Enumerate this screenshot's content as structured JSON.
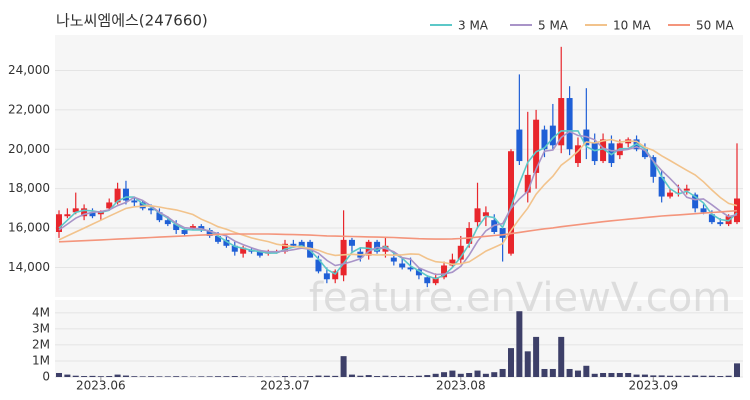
{
  "chart_data": {
    "type": "candlestick",
    "title": "나노씨엠에스(247660)",
    "watermark": "feature.enViewV.com",
    "categories": [
      null,
      null,
      null,
      null,
      null,
      "2023.06",
      null,
      null,
      null,
      null,
      null,
      null,
      null,
      null,
      null,
      null,
      null,
      null,
      null,
      null,
      null,
      null,
      null,
      null,
      null,
      null,
      null,
      "2023.07",
      null,
      null,
      null,
      null,
      null,
      null,
      null,
      null,
      null,
      null,
      null,
      null,
      null,
      null,
      null,
      null,
      null,
      null,
      null,
      null,
      "2023.08",
      null,
      null,
      null,
      null,
      null,
      null,
      null,
      null,
      null,
      null,
      null,
      null,
      null,
      null,
      null,
      null,
      null,
      null,
      null,
      null,
      null,
      null,
      "2023.09",
      null,
      null,
      null,
      null,
      null,
      null,
      null,
      null,
      null,
      null
    ],
    "open": [
      15800,
      16600,
      16800,
      16600,
      16800,
      16700,
      17000,
      17300,
      18000,
      17400,
      17300,
      17000,
      16800,
      16400,
      16200,
      15900,
      16000,
      16100,
      15900,
      15600,
      15400,
      15100,
      14700,
      14900,
      14800,
      14700,
      14800,
      14800,
      15200,
      15300,
      15300,
      14400,
      13700,
      13400,
      13600,
      15400,
      14800,
      14600,
      15300,
      14800,
      14500,
      14200,
      14000,
      13900,
      13500,
      13200,
      13500,
      14100,
      14400,
      15200,
      16300,
      16600,
      16400,
      16000,
      14700,
      21000,
      17800,
      18800,
      21000,
      21200,
      20200,
      22600,
      19300,
      21000,
      20300,
      19400,
      20300,
      19700,
      20300,
      20500,
      20000,
      19600,
      18600,
      17600,
      17800,
      17900,
      17700,
      17000,
      16700,
      16300,
      16200,
      16300
    ],
    "high": [
      16900,
      17000,
      17800,
      17200,
      17000,
      16900,
      17500,
      18300,
      18400,
      17600,
      17400,
      17200,
      17000,
      16600,
      16400,
      16000,
      16200,
      16200,
      16000,
      15800,
      15600,
      15300,
      15100,
      15000,
      14900,
      14900,
      14900,
      15400,
      15400,
      15400,
      15400,
      14600,
      14000,
      13900,
      16900,
      15500,
      15000,
      15400,
      15400,
      15500,
      14800,
      14500,
      14500,
      14000,
      13600,
      13700,
      14300,
      14700,
      15600,
      16300,
      18300,
      17100,
      16700,
      16000,
      20000,
      23800,
      21900,
      22000,
      21200,
      22300,
      25200,
      23200,
      20600,
      23100,
      20800,
      20800,
      20700,
      20500,
      20600,
      20700,
      20300,
      19700,
      18900,
      18000,
      18200,
      18200,
      17800,
      17200,
      16900,
      16500,
      16700,
      20300
    ],
    "low": [
      15500,
      16500,
      16700,
      16400,
      16500,
      16400,
      16900,
      17200,
      17200,
      17100,
      16900,
      16700,
      16300,
      16100,
      15700,
      15600,
      15900,
      15800,
      15500,
      15200,
      15000,
      14600,
      14500,
      14700,
      14500,
      14600,
      14700,
      14700,
      15000,
      15000,
      14500,
      13700,
      13200,
      13200,
      13300,
      14800,
      14300,
      14400,
      14700,
      14500,
      14100,
      13900,
      13800,
      13400,
      13000,
      13100,
      13400,
      14000,
      14200,
      15000,
      16000,
      16100,
      15700,
      14300,
      14600,
      19200,
      17300,
      18000,
      19600,
      20000,
      19800,
      19700,
      19100,
      19500,
      19200,
      19300,
      19100,
      19500,
      20100,
      19900,
      19500,
      18300,
      17300,
      17500,
      17600,
      17700,
      16800,
      16700,
      16200,
      16100,
      16100,
      16200
    ],
    "close": [
      16700,
      16700,
      17000,
      17000,
      16600,
      16800,
      17300,
      18000,
      17400,
      17300,
      17000,
      16900,
      16400,
      16200,
      15900,
      15700,
      16100,
      15900,
      15600,
      15300,
      15100,
      14800,
      15000,
      14800,
      14600,
      14800,
      14800,
      15200,
      15100,
      15000,
      14500,
      13800,
      13400,
      13800,
      15400,
      15100,
      14500,
      15300,
      14800,
      15100,
      14300,
      14000,
      13900,
      13600,
      13200,
      13500,
      14100,
      14400,
      15100,
      16000,
      17000,
      16800,
      15800,
      15500,
      19900,
      19400,
      18700,
      21500,
      20000,
      20200,
      22600,
      20000,
      20200,
      20200,
      19400,
      20500,
      19300,
      20300,
      20500,
      20000,
      19600,
      18600,
      17600,
      17800,
      17800,
      18000,
      17000,
      16800,
      16300,
      16200,
      16600,
      17500
    ],
    "volume": [
      250000,
      150000,
      80000,
      60000,
      70000,
      50000,
      60000,
      150000,
      90000,
      50000,
      40000,
      50000,
      40000,
      40000,
      50000,
      40000,
      30000,
      40000,
      40000,
      50000,
      50000,
      60000,
      40000,
      30000,
      40000,
      30000,
      30000,
      60000,
      50000,
      40000,
      60000,
      90000,
      80000,
      70000,
      1300000,
      150000,
      80000,
      120000,
      60000,
      80000,
      60000,
      70000,
      60000,
      80000,
      120000,
      200000,
      300000,
      400000,
      200000,
      250000,
      400000,
      200000,
      300000,
      500000,
      1800000,
      4100000,
      1600000,
      2500000,
      500000,
      500000,
      2500000,
      500000,
      400000,
      700000,
      200000,
      250000,
      250000,
      250000,
      250000,
      150000,
      150000,
      100000,
      100000,
      80000,
      80000,
      80000,
      100000,
      80000,
      80000,
      60000,
      80000,
      850000
    ],
    "up_color": "#e8262c",
    "down_color": "#1f5fd6",
    "volume_color": "#3d3f68",
    "series": [
      {
        "name": "3 MA",
        "color": "#5cc8c8",
        "values": [
          16000,
          16400,
          16800,
          16900,
          16870,
          16800,
          16900,
          17370,
          17570,
          17570,
          17230,
          17070,
          16770,
          16500,
          16170,
          15930,
          15900,
          15900,
          15870,
          15600,
          15330,
          15070,
          14970,
          14870,
          14800,
          14730,
          14730,
          14930,
          15030,
          15100,
          14870,
          14430,
          13900,
          13670,
          14200,
          14770,
          15000,
          14970,
          14870,
          15070,
          14730,
          14470,
          14070,
          13830,
          13570,
          13430,
          13600,
          14000,
          14530,
          15170,
          16030,
          16600,
          16530,
          16030,
          17070,
          18270,
          19330,
          19870,
          20070,
          20570,
          20930,
          20930,
          20930,
          20130,
          19930,
          20030,
          19730,
          20030,
          20030,
          20270,
          20030,
          19400,
          18600,
          18000,
          17730,
          17870,
          17600,
          17270,
          16700,
          16430,
          16370,
          16770
        ]
      },
      {
        "name": "5 MA",
        "color": "#a994c8",
        "values": [
          15900,
          16200,
          16500,
          16700,
          16800,
          16840,
          16920,
          17140,
          17300,
          17560,
          17400,
          17120,
          16800,
          16560,
          16240,
          16020,
          15980,
          15960,
          15840,
          15720,
          15600,
          15340,
          15160,
          15000,
          14860,
          14800,
          14800,
          14840,
          14900,
          14980,
          14920,
          14720,
          14360,
          14100,
          14180,
          14300,
          14440,
          14820,
          15020,
          14960,
          14800,
          14500,
          14420,
          13980,
          13800,
          13640,
          13660,
          13760,
          14060,
          14620,
          15320,
          15860,
          16140,
          16220,
          17000,
          17480,
          17860,
          19000,
          19900,
          19960,
          20600,
          20900,
          20700,
          20640,
          20480,
          20060,
          19920,
          19940,
          20000,
          20120,
          19940,
          19400,
          18920,
          18520,
          18080,
          17560,
          17440,
          17480,
          17180,
          16860,
          16580,
          16680
        ]
      },
      {
        "name": "10 MA",
        "color": "#f2c38c",
        "values": [
          15400,
          15600,
          15800,
          16000,
          16200,
          16400,
          16600,
          16800,
          17000,
          17080,
          17110,
          17130,
          17070,
          16990,
          16920,
          16810,
          16690,
          16450,
          16270,
          16070,
          15940,
          15780,
          15640,
          15500,
          15400,
          15310,
          15180,
          15110,
          15060,
          15030,
          14970,
          14870,
          14710,
          14610,
          14640,
          14670,
          14640,
          14660,
          14630,
          14640,
          14620,
          14640,
          14690,
          14670,
          14450,
          14290,
          14250,
          14160,
          14190,
          14280,
          14550,
          14830,
          15020,
          15210,
          15880,
          16470,
          17010,
          17720,
          18210,
          18630,
          19190,
          19510,
          19900,
          20370,
          20320,
          20430,
          20490,
          20370,
          20420,
          20400,
          20100,
          19940,
          19670,
          19430,
          19180,
          18930,
          18700,
          18350,
          17930,
          17550,
          17250,
          17140
        ]
      },
      {
        "name": "50 MA",
        "color": "#f4957c",
        "values": [
          15300,
          15320,
          15340,
          15360,
          15380,
          15400,
          15420,
          15440,
          15460,
          15480,
          15500,
          15520,
          15540,
          15560,
          15580,
          15600,
          15620,
          15640,
          15660,
          15680,
          15690,
          15700,
          15700,
          15700,
          15700,
          15700,
          15690,
          15680,
          15670,
          15660,
          15640,
          15620,
          15600,
          15590,
          15580,
          15570,
          15560,
          15550,
          15540,
          15530,
          15520,
          15500,
          15480,
          15460,
          15450,
          15440,
          15440,
          15450,
          15470,
          15500,
          15540,
          15580,
          15620,
          15660,
          15720,
          15780,
          15840,
          15900,
          15960,
          16010,
          16070,
          16120,
          16170,
          16220,
          16270,
          16320,
          16370,
          16410,
          16450,
          16490,
          16530,
          16570,
          16610,
          16640,
          16670,
          16700,
          16730,
          16760,
          16790,
          16820,
          16850,
          16880
        ]
      }
    ],
    "ylim": [
      12500,
      25800
    ],
    "yticks": [
      {
        "value": 14000,
        "label": "14,000"
      },
      {
        "value": 16000,
        "label": "16,000"
      },
      {
        "value": 18000,
        "label": "18,000"
      },
      {
        "value": 20000,
        "label": "20,000"
      },
      {
        "value": 22000,
        "label": "22,000"
      },
      {
        "value": 24000,
        "label": "24,000"
      }
    ],
    "volume_ylim": [
      0,
      4800000
    ],
    "volume_yticks": [
      0,
      {
        "value": 1000000,
        "label": "1M"
      },
      {
        "value": 2000000,
        "label": "2M"
      },
      {
        "value": 3000000,
        "label": "3M"
      },
      {
        "value": 4000000,
        "label": "4M"
      }
    ],
    "grid": true
  }
}
